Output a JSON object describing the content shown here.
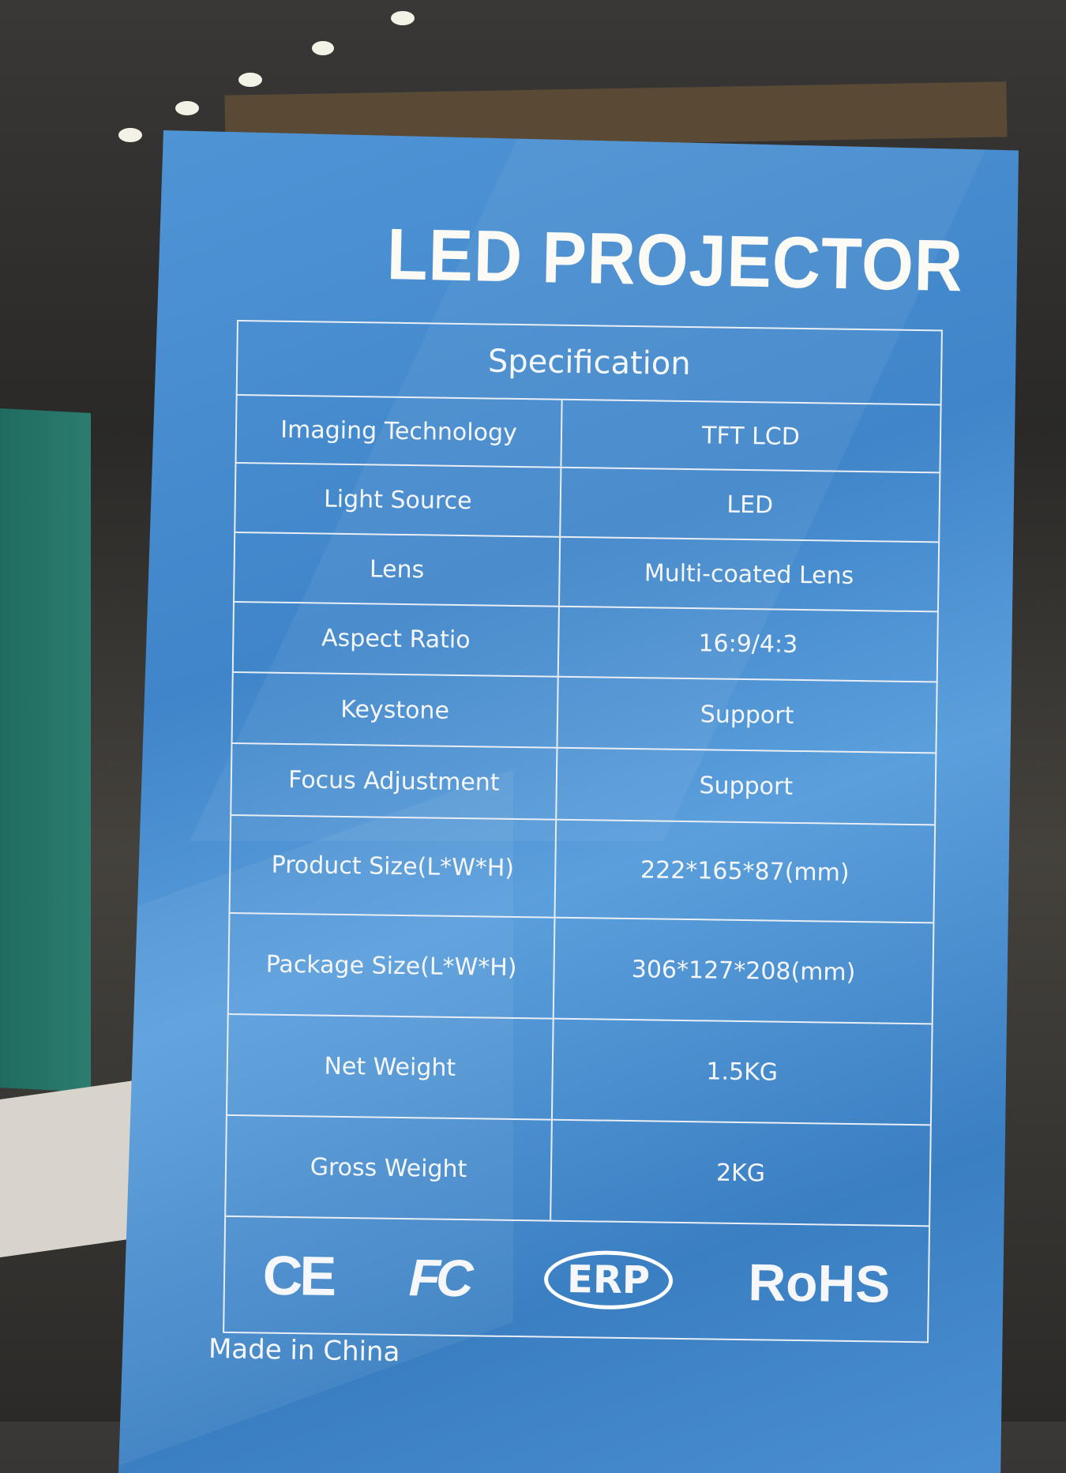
{
  "title": "LED PROJECTOR",
  "spec_header": "Specification",
  "specs": [
    {
      "label": "Imaging Technology",
      "value": "TFT LCD"
    },
    {
      "label": "Light Source",
      "value": "LED"
    },
    {
      "label": "Lens",
      "value": "Multi-coated Lens"
    },
    {
      "label": "Aspect Ratio",
      "value": "16:9/4:3"
    },
    {
      "label": "Keystone",
      "value": "Support"
    },
    {
      "label": "Focus Adjustment",
      "value": "Support"
    },
    {
      "label": "Product Size(L*W*H)",
      "value": "222*165*87(mm)"
    },
    {
      "label": "Package Size(L*W*H)",
      "value": "306*127*208(mm)"
    },
    {
      "label": "Net Weight",
      "value": "1.5KG"
    },
    {
      "label": "Gross Weight",
      "value": "2KG"
    }
  ],
  "certifications": [
    "CE",
    "FC",
    "ERP",
    "RoHS"
  ],
  "origin": "Made in China",
  "colors": {
    "box_blue": "#4a8fd1",
    "text": "#f5f7fa"
  }
}
